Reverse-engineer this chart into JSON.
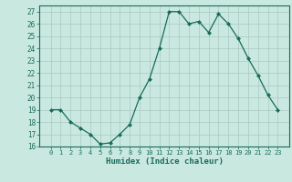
{
  "x": [
    0,
    1,
    2,
    3,
    4,
    5,
    6,
    7,
    8,
    9,
    10,
    11,
    12,
    13,
    14,
    15,
    16,
    17,
    18,
    19,
    20,
    21,
    22,
    23
  ],
  "y": [
    19,
    19,
    18,
    17.5,
    17,
    16.2,
    16.3,
    17,
    17.8,
    20,
    21.5,
    24,
    27,
    27,
    26,
    26.2,
    25.3,
    26.8,
    26,
    24.8,
    23.2,
    21.8,
    20.2,
    19
  ],
  "line_color": "#1a6b5a",
  "marker": "D",
  "marker_size": 2.0,
  "bg_color": "#c8e8e0",
  "grid_color": "#a8c8c0",
  "xlabel": "Humidex (Indice chaleur)",
  "ylim": [
    16,
    27.5
  ],
  "yticks": [
    16,
    17,
    18,
    19,
    20,
    21,
    22,
    23,
    24,
    25,
    26,
    27
  ],
  "xticks": [
    0,
    1,
    2,
    3,
    4,
    5,
    6,
    7,
    8,
    9,
    10,
    11,
    12,
    13,
    14,
    15,
    16,
    17,
    18,
    19,
    20,
    21,
    22,
    23
  ]
}
